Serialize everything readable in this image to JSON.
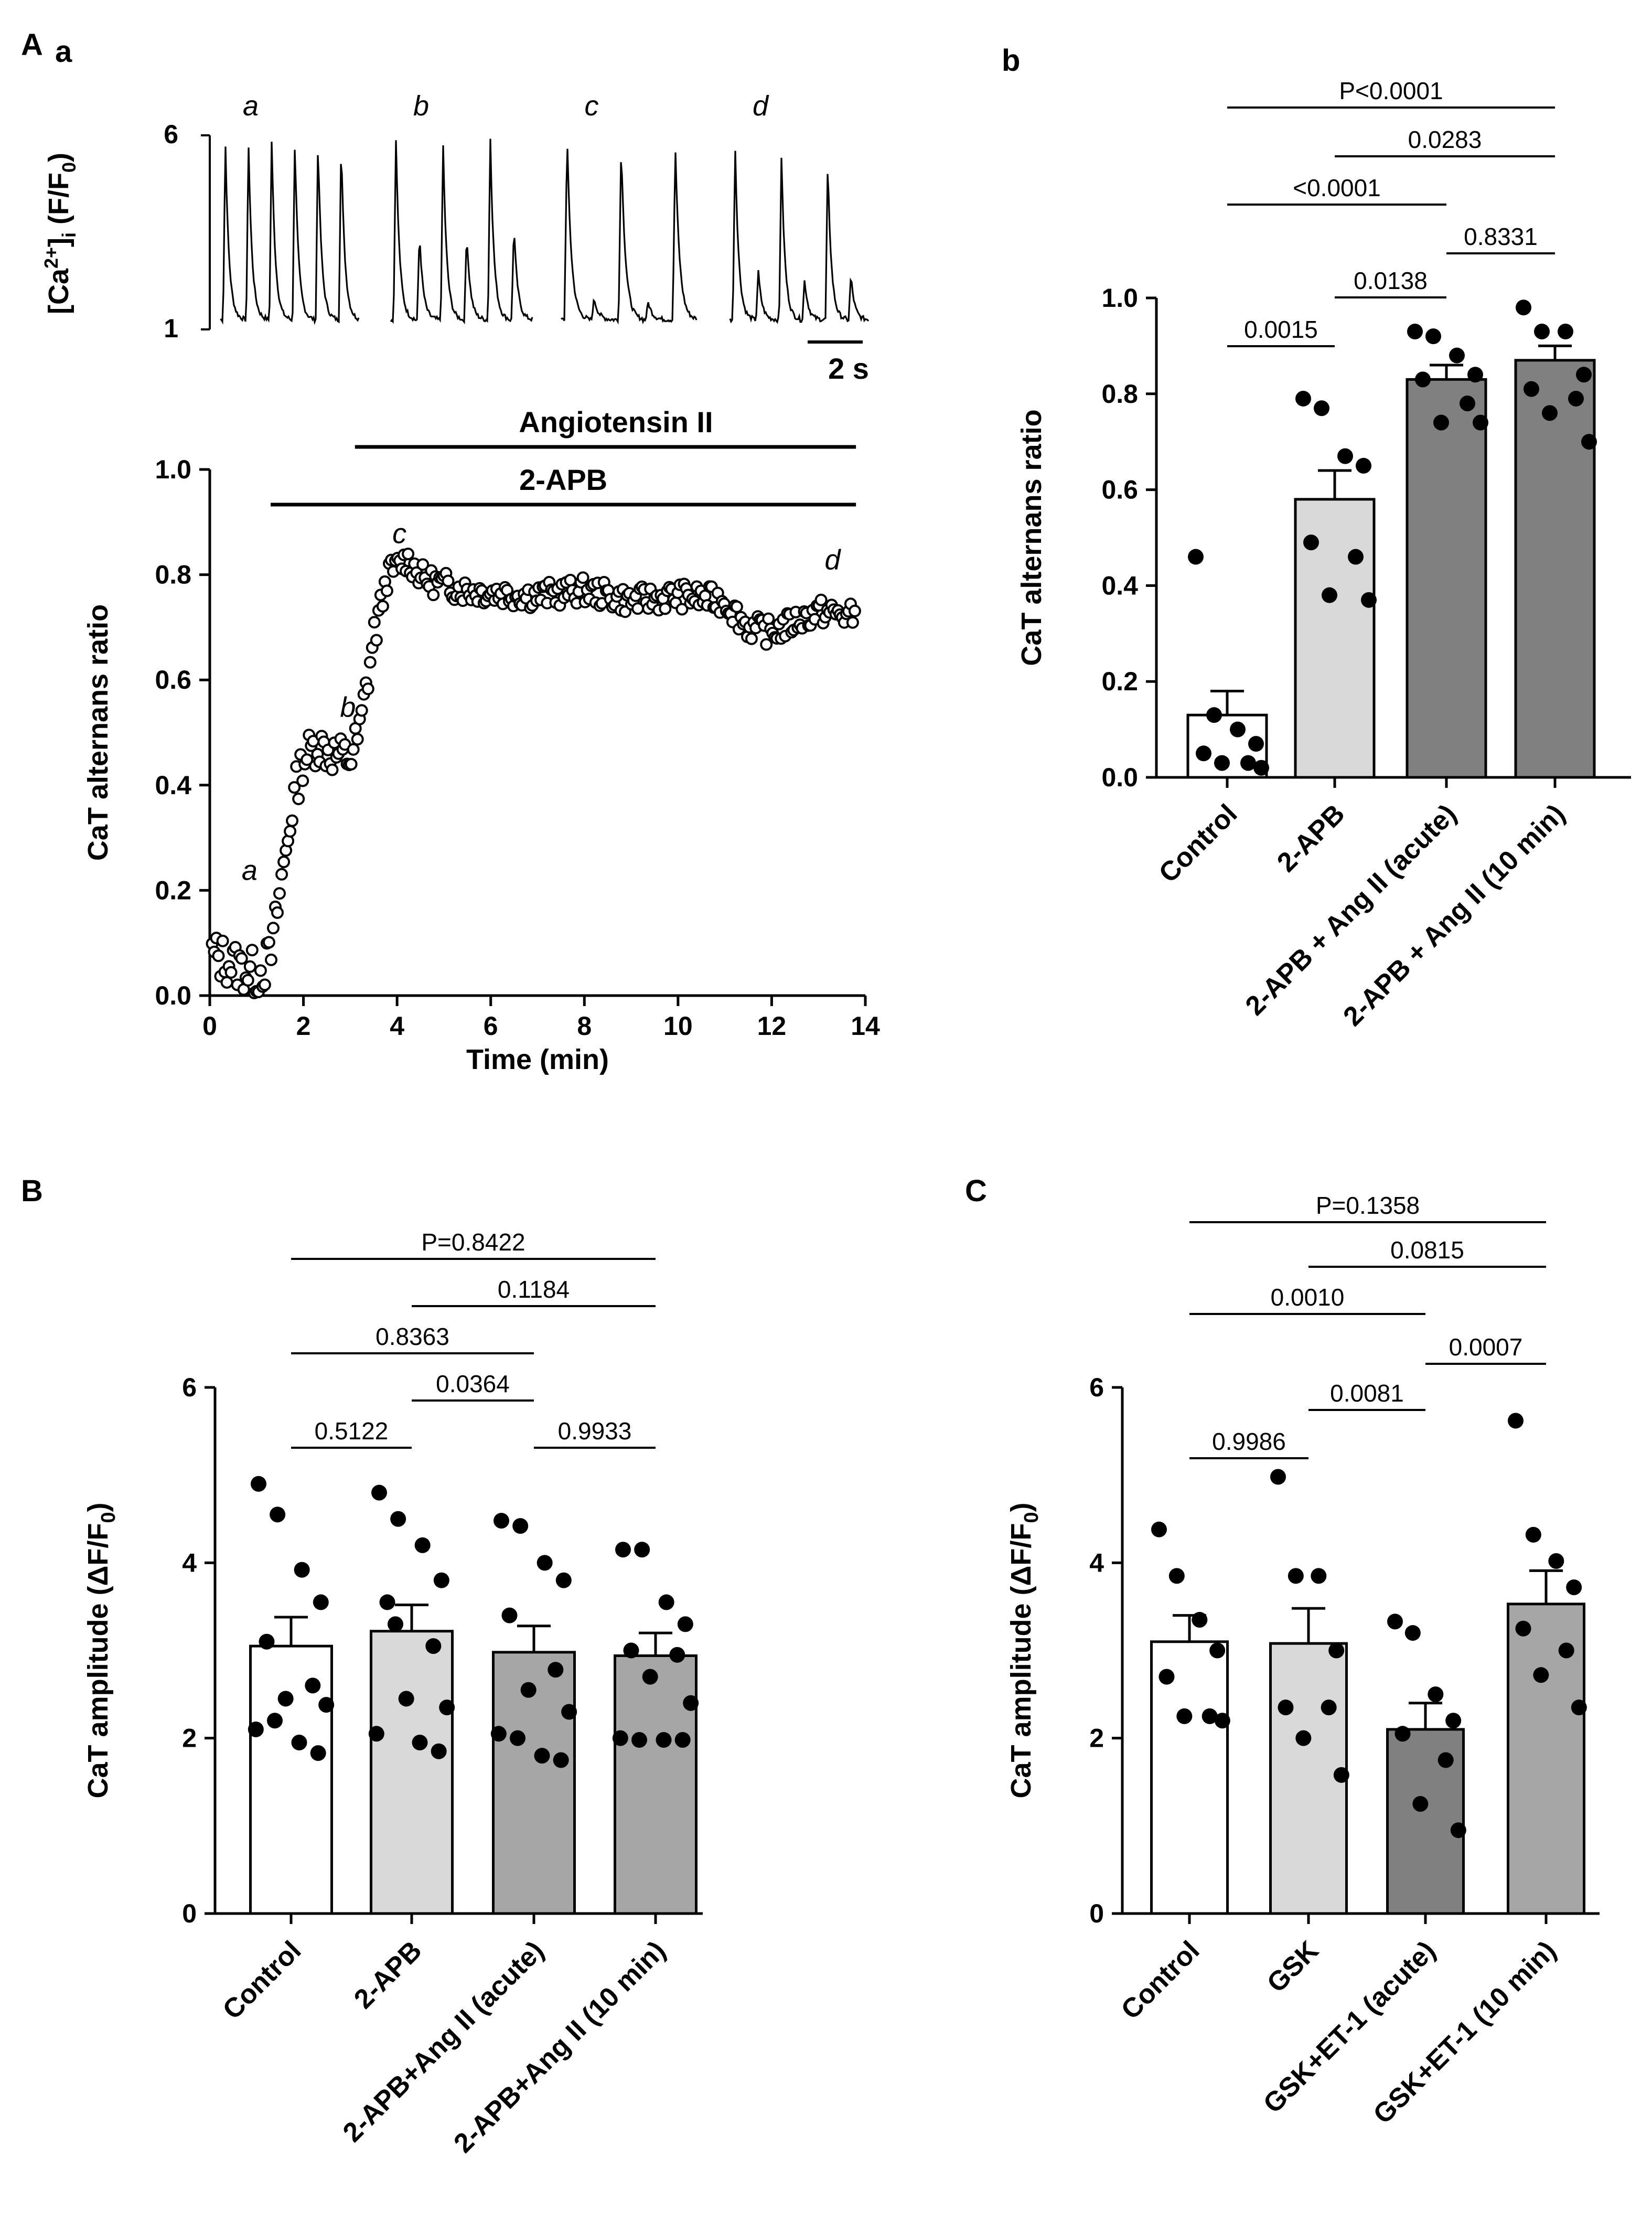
{
  "figure": {
    "panel_labels": {
      "A": "A",
      "Aa": "a",
      "Ab": "b",
      "B": "B",
      "C": "C"
    }
  },
  "chart_data": [
    {
      "id": "Aa-traces",
      "type": "line",
      "ylabel_main": "[Ca",
      "ylabel_sup": "2+",
      "ylabel_mid": "]",
      "ylabel_sub": "i",
      "ylabel_end": " (F/F",
      "ylabel_sub2": "0",
      "ylabel_close": ")",
      "y_ticks": [
        "1",
        "6"
      ],
      "ylim": [
        1,
        6
      ],
      "scale_bar_label": "2 s",
      "segments": [
        {
          "label": "a",
          "peaks": [
            5.9,
            5.8,
            5.9,
            5.9,
            5.9,
            5.9
          ]
        },
        {
          "label": "b",
          "peaks": [
            6.0,
            3.5,
            5.8,
            3.5,
            6.0,
            3.7
          ]
        },
        {
          "label": "c",
          "peaks": [
            6.0,
            1.8,
            5.8,
            1.7,
            5.7
          ]
        },
        {
          "label": "d",
          "peaks": [
            5.8,
            2.5,
            5.5,
            2.3,
            5.3,
            2.4
          ]
        }
      ]
    },
    {
      "id": "Aa-timecourse",
      "type": "scatter",
      "xlabel": "Time (min)",
      "ylabel": "CaT alternans ratio",
      "xlim": [
        0,
        14
      ],
      "ylim": [
        0,
        1.0
      ],
      "x_ticks": [
        "0",
        "2",
        "4",
        "6",
        "8",
        "10",
        "12",
        "14"
      ],
      "y_ticks": [
        "0.0",
        "0.2",
        "0.4",
        "0.6",
        "0.8",
        "1.0"
      ],
      "drug_bars": [
        {
          "label": "Angiotensin II",
          "start": 3.1,
          "end": 13.8
        },
        {
          "label": "2-APB",
          "start": 1.3,
          "end": 13.8
        }
      ],
      "annotations": [
        {
          "text": "a",
          "x": 0.85,
          "y": 0.22
        },
        {
          "text": "b",
          "x": 2.95,
          "y": 0.53
        },
        {
          "text": "c",
          "x": 4.05,
          "y": 0.86
        },
        {
          "text": "d",
          "x": 13.3,
          "y": 0.81
        }
      ],
      "trend": [
        [
          0,
          0.08
        ],
        [
          0.5,
          0.06
        ],
        [
          1.0,
          0.04
        ],
        [
          1.3,
          0.07
        ],
        [
          1.5,
          0.2
        ],
        [
          1.8,
          0.38
        ],
        [
          2.0,
          0.45
        ],
        [
          2.3,
          0.48
        ],
        [
          2.6,
          0.46
        ],
        [
          3.0,
          0.45
        ],
        [
          3.2,
          0.5
        ],
        [
          3.5,
          0.68
        ],
        [
          3.8,
          0.8
        ],
        [
          4.2,
          0.83
        ],
        [
          4.6,
          0.79
        ],
        [
          5.5,
          0.77
        ],
        [
          7,
          0.76
        ],
        [
          8,
          0.77
        ],
        [
          9,
          0.75
        ],
        [
          10,
          0.76
        ],
        [
          11,
          0.75
        ],
        [
          11.5,
          0.7
        ],
        [
          12,
          0.69
        ],
        [
          12.5,
          0.71
        ],
        [
          13,
          0.73
        ],
        [
          13.8,
          0.72
        ]
      ]
    },
    {
      "id": "Ab",
      "type": "bar",
      "ylabel": "CaT alternans ratio",
      "ylim": [
        0,
        1.0
      ],
      "y_ticks": [
        "0.0",
        "0.2",
        "0.4",
        "0.6",
        "0.8",
        "1.0"
      ],
      "categories": [
        "Control",
        "2-APB",
        "2-APB + Ang II  (acute)",
        "2-APB + Ang II  (10 min)"
      ],
      "values": [
        0.13,
        0.58,
        0.83,
        0.87
      ],
      "sem": [
        0.05,
        0.06,
        0.03,
        0.03
      ],
      "colors": [
        "#ffffff",
        "#d9d9d9",
        "#808080",
        "#808080"
      ],
      "points": [
        [
          0.46,
          0.13,
          0.1,
          0.07,
          0.05,
          0.03,
          0.03,
          0.02
        ],
        [
          0.79,
          0.77,
          0.67,
          0.65,
          0.49,
          0.46,
          0.38,
          0.37
        ],
        [
          0.93,
          0.92,
          0.88,
          0.84,
          0.83,
          0.78,
          0.74,
          0.74
        ],
        [
          0.98,
          0.93,
          0.93,
          0.84,
          0.81,
          0.79,
          0.76,
          0.7
        ]
      ],
      "comparisons": [
        {
          "from": 0,
          "to": 3,
          "text": "P<0.0001"
        },
        {
          "from": 1,
          "to": 3,
          "text": "0.0283"
        },
        {
          "from": 0,
          "to": 2,
          "text": "<0.0001"
        },
        {
          "from": 2,
          "to": 3,
          "text": "0.8331"
        },
        {
          "from": 1,
          "to": 2,
          "text": "0.0138"
        },
        {
          "from": 0,
          "to": 1,
          "text": "0.0015"
        }
      ]
    },
    {
      "id": "B",
      "type": "bar",
      "ylabel": "CaT amplitude (ΔF/F",
      "ylabel_sub": "0",
      "ylabel_close": ")",
      "ylim": [
        0,
        6
      ],
      "y_ticks": [
        "0",
        "2",
        "4",
        "6"
      ],
      "categories": [
        "Control",
        "2-APB",
        "2-APB+Ang II (acute)",
        "2-APB+Ang II (10 min)"
      ],
      "values": [
        3.05,
        3.22,
        2.98,
        2.94
      ],
      "sem": [
        0.33,
        0.3,
        0.3,
        0.26
      ],
      "colors": [
        "#ffffff",
        "#d9d9d9",
        "#a6a6a6",
        "#a6a6a6"
      ],
      "points": [
        [
          4.9,
          4.55,
          3.92,
          3.55,
          3.1,
          2.6,
          2.45,
          2.38,
          2.1,
          1.95,
          1.83,
          2.2
        ],
        [
          4.8,
          4.5,
          4.2,
          3.8,
          3.55,
          3.05,
          2.45,
          2.35,
          2.05,
          1.95,
          1.85,
          3.3
        ],
        [
          4.48,
          4.42,
          4.0,
          3.8,
          3.4,
          2.78,
          2.55,
          2.3,
          2.05,
          1.8,
          1.75,
          2.0
        ],
        [
          4.15,
          4.15,
          3.55,
          3.3,
          3.0,
          2.95,
          2.7,
          2.4,
          2.0,
          1.98,
          1.98,
          1.98
        ]
      ],
      "comparisons": [
        {
          "from": 0,
          "to": 3,
          "text": "P=0.8422"
        },
        {
          "from": 1,
          "to": 3,
          "text": "0.1184"
        },
        {
          "from": 0,
          "to": 2,
          "text": "0.8363"
        },
        {
          "from": 1,
          "to": 2,
          "text": "0.0364"
        },
        {
          "from": 0,
          "to": 1,
          "text": "0.5122"
        },
        {
          "from": 2,
          "to": 3,
          "text": "0.9933"
        }
      ]
    },
    {
      "id": "C",
      "type": "bar",
      "ylabel": "CaT amplitude (ΔF/F",
      "ylabel_sub": "0",
      "ylabel_close": ")",
      "ylim": [
        0,
        6
      ],
      "y_ticks": [
        "0",
        "2",
        "4",
        "6"
      ],
      "categories": [
        "Control",
        "GSK",
        "GSK+ET-1 (acute)",
        "GSK+ET-1 (10 min)"
      ],
      "values": [
        3.1,
        3.08,
        2.1,
        3.53
      ],
      "sem": [
        0.3,
        0.4,
        0.3,
        0.38
      ],
      "colors": [
        "#ffffff",
        "#d9d9d9",
        "#808080",
        "#a6a6a6"
      ],
      "points": [
        [
          4.38,
          3.85,
          3.35,
          3.0,
          2.7,
          2.25,
          2.25,
          2.2
        ],
        [
          4.98,
          3.85,
          3.85,
          3.0,
          2.35,
          2.35,
          2.0,
          1.58
        ],
        [
          3.33,
          3.2,
          2.5,
          2.2,
          2.05,
          1.75,
          1.25,
          0.95
        ],
        [
          5.62,
          4.32,
          4.02,
          3.72,
          3.25,
          3.0,
          2.72,
          2.35
        ]
      ],
      "comparisons": [
        {
          "from": 0,
          "to": 3,
          "text": "P=0.1358"
        },
        {
          "from": 1,
          "to": 3,
          "text": "0.0815"
        },
        {
          "from": 0,
          "to": 2,
          "text": "0.0010"
        },
        {
          "from": 2,
          "to": 3,
          "text": "0.0007"
        },
        {
          "from": 1,
          "to": 2,
          "text": "0.0081"
        },
        {
          "from": 0,
          "to": 1,
          "text": "0.9986"
        }
      ]
    }
  ]
}
